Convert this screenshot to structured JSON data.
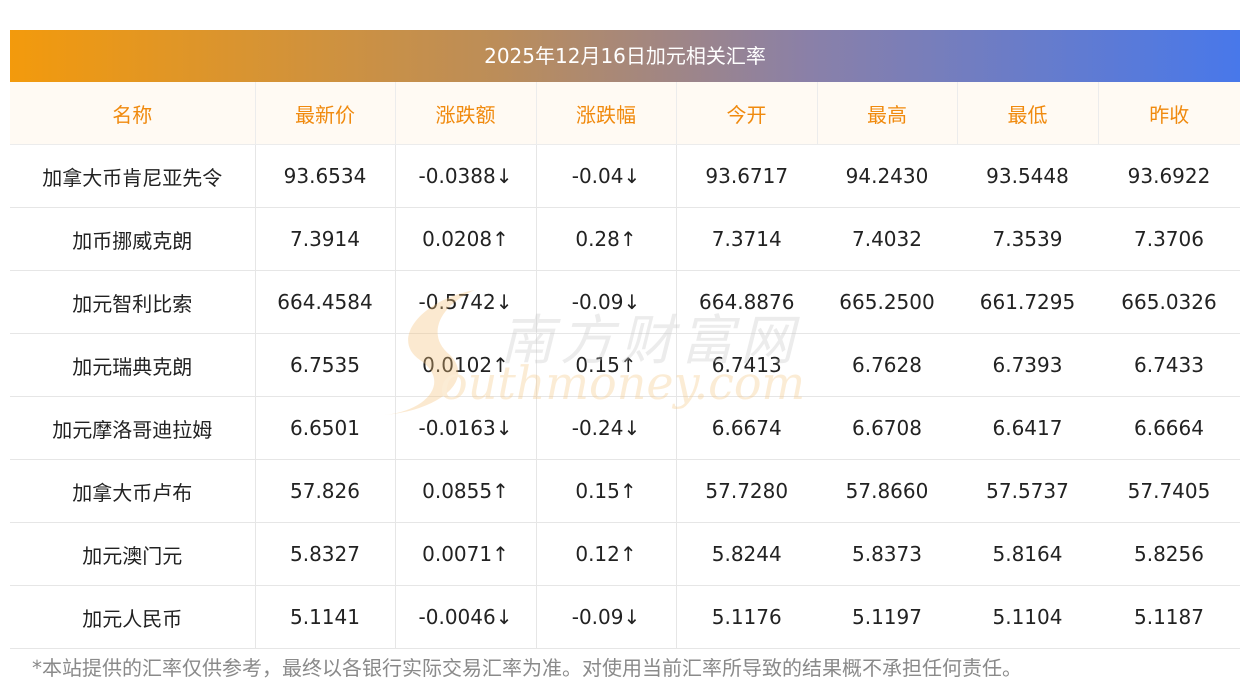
{
  "title": "2025年12月16日加元相关汇率",
  "headers": [
    "名称",
    "最新价",
    "涨跌额",
    "涨跌幅",
    "今开",
    "最高",
    "最低",
    "昨收"
  ],
  "rows": [
    {
      "name": "加拿大币肯尼亚先令",
      "latest": "93.6534",
      "change": "-0.0388↓",
      "pct": "-0.04↓",
      "open": "93.6717",
      "high": "94.2430",
      "low": "93.5448",
      "prev": "93.6922",
      "dir": "down"
    },
    {
      "name": "加币挪威克朗",
      "latest": "7.3914",
      "change": "0.0208↑",
      "pct": "0.28↑",
      "open": "7.3714",
      "high": "7.4032",
      "low": "7.3539",
      "prev": "7.3706",
      "dir": "up"
    },
    {
      "name": "加元智利比索",
      "latest": "664.4584",
      "change": "-0.5742↓",
      "pct": "-0.09↓",
      "open": "664.8876",
      "high": "665.2500",
      "low": "661.7295",
      "prev": "665.0326",
      "dir": "down"
    },
    {
      "name": "加元瑞典克朗",
      "latest": "6.7535",
      "change": "0.0102↑",
      "pct": "0.15↑",
      "open": "6.7413",
      "high": "6.7628",
      "low": "6.7393",
      "prev": "6.7433",
      "dir": "up"
    },
    {
      "name": "加元摩洛哥迪拉姆",
      "latest": "6.6501",
      "change": "-0.0163↓",
      "pct": "-0.24↓",
      "open": "6.6674",
      "high": "6.6708",
      "low": "6.6417",
      "prev": "6.6664",
      "dir": "down"
    },
    {
      "name": "加拿大币卢布",
      "latest": "57.826",
      "change": "0.0855↑",
      "pct": "0.15↑",
      "open": "57.7280",
      "high": "57.8660",
      "low": "57.5737",
      "prev": "57.7405",
      "dir": "up"
    },
    {
      "name": "加元澳门元",
      "latest": "5.8327",
      "change": "0.0071↑",
      "pct": "0.12↑",
      "open": "5.8244",
      "high": "5.8373",
      "low": "5.8164",
      "prev": "5.8256",
      "dir": "up"
    },
    {
      "name": "加元人民币",
      "latest": "5.1141",
      "change": "-0.0046↓",
      "pct": "-0.09↓",
      "open": "5.1176",
      "high": "5.1197",
      "low": "5.1104",
      "prev": "5.1187",
      "dir": "down"
    }
  ],
  "watermark": {
    "cn": "南方财富网",
    "en": "outhmoney.com"
  },
  "disclaimer": "*本站提供的汇率仅供参考，最终以各银行实际交易汇率为准。对使用当前汇率所导致的结果概不承担任何责任。",
  "colors": {
    "up": "#e61a1a",
    "down": "#1a8a1a",
    "header_text": "#f08a0e",
    "title_start": "#f39a0c",
    "title_end": "#4878ea"
  }
}
